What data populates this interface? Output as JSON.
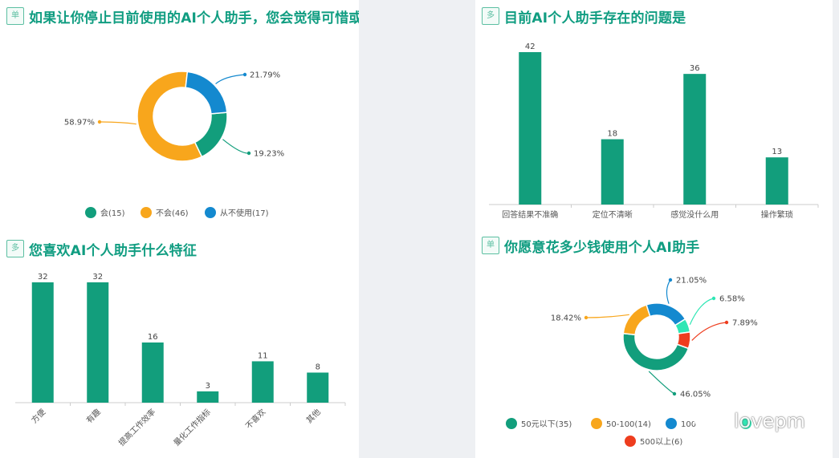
{
  "chart_data": [
    {
      "type": "pie",
      "badge": "单",
      "title": "如果让你停止目前使用的AI个人助手，您会觉得可惜或难过吗？",
      "slices": [
        {
          "name": "会",
          "count": 15,
          "percent": 19.23,
          "label": "19.23%",
          "legend": "会(15)",
          "color": "#129e7c"
        },
        {
          "name": "不会",
          "count": 46,
          "percent": 58.97,
          "label": "58.97%",
          "legend": "不会(46)",
          "color": "#f8a61c"
        },
        {
          "name": "从不使用",
          "count": 17,
          "percent": 21.79,
          "label": "21.79%",
          "legend": "从不使用(17)",
          "color": "#1489cf"
        }
      ],
      "legend_position": "bottom"
    },
    {
      "type": "bar",
      "badge": "多",
      "title": "目前AI个人助手存在的问题是",
      "categories": [
        "回答结果不准确",
        "定位不清晰",
        "感觉没什么用",
        "操作繁琐"
      ],
      "values": [
        42,
        18,
        36,
        13
      ],
      "ylim": [
        0,
        42
      ],
      "color": "#129e7c",
      "grid": false
    },
    {
      "type": "bar",
      "badge": "多",
      "title": "您喜欢AI个人助手什么特征",
      "categories": [
        "方便",
        "有趣",
        "提高工作效率",
        "量化工作指标",
        "不喜欢",
        "其他"
      ],
      "values": [
        32,
        32,
        16,
        3,
        11,
        8
      ],
      "ylim": [
        0,
        32
      ],
      "color": "#129e7c",
      "grid": false,
      "xtick_rotation": "rotated"
    },
    {
      "type": "pie",
      "badge": "单",
      "title": "你愿意花多少钱使用个人AI助手",
      "slices": [
        {
          "name": "50元以下",
          "count": 35,
          "percent": 46.05,
          "label": "46.05%",
          "legend": "50元以下(35)",
          "color": "#129e7c"
        },
        {
          "name": "50-100",
          "count": 14,
          "percent": 18.42,
          "label": "18.42%",
          "legend": "50-100(14)",
          "color": "#f8a61c"
        },
        {
          "name": "100",
          "count": 16,
          "percent": 21.05,
          "label": "21.05%",
          "legend": "100",
          "color": "#1489cf"
        },
        {
          "name": "",
          "count": 5,
          "percent": 6.58,
          "label": "6.58%",
          "legend": "",
          "color": "#2ee6b4"
        },
        {
          "name": "500以上",
          "count": 6,
          "percent": 7.89,
          "label": "7.89%",
          "legend": "500以上(6)",
          "color": "#ee3d1e"
        }
      ],
      "legend_position": "bottom"
    }
  ],
  "watermark": {
    "text": "lovepm",
    "icon": "wechat-icon"
  }
}
